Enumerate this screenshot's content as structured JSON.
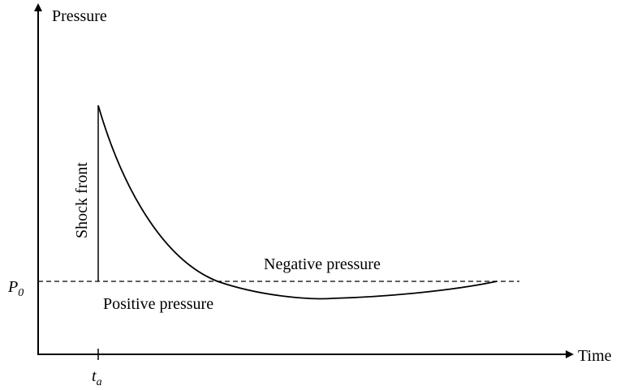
{
  "axes": {
    "y_label": "Pressure",
    "x_label": "Time"
  },
  "labels": {
    "shock_front": "Shock front",
    "negative": "Negative pressure",
    "positive": "Positive pressure",
    "p0": {
      "main": "P",
      "sub": "0"
    },
    "ta": {
      "main": "t",
      "sub": "a"
    }
  }
}
